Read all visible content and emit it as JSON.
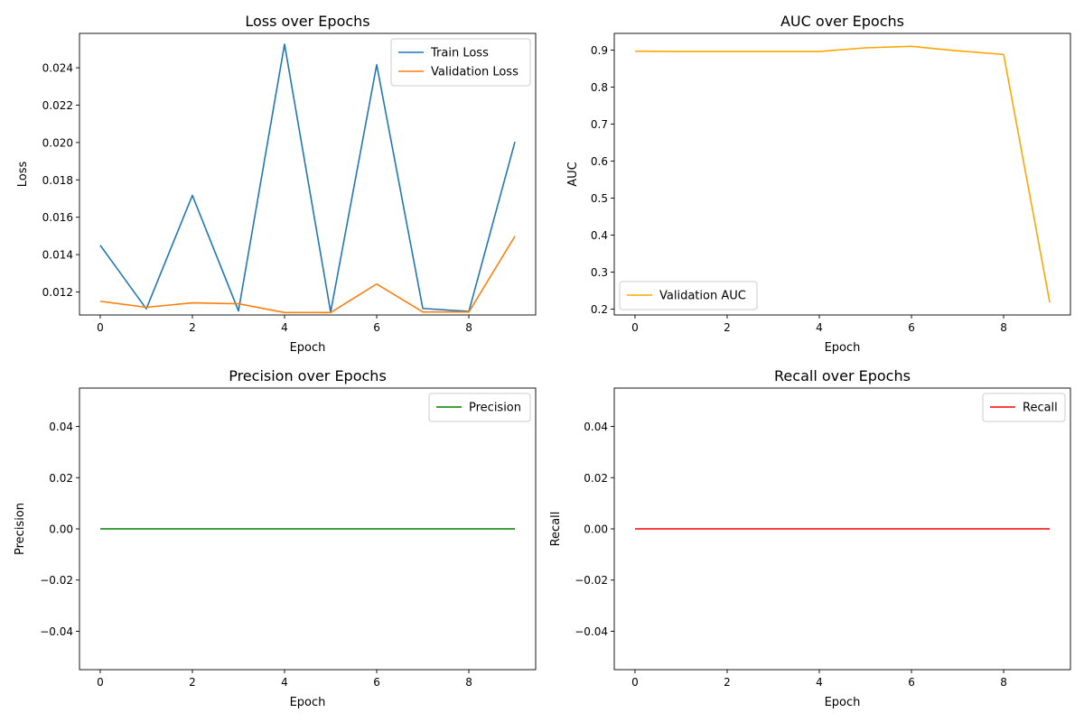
{
  "chart_data": [
    {
      "type": "line",
      "title": "Loss over Epochs",
      "xlabel": "Epoch",
      "ylabel": "Loss",
      "xlim": [
        -0.45,
        9.45
      ],
      "ylim": [
        0.01077,
        0.02584
      ],
      "xticks": [
        0,
        2,
        4,
        6,
        8
      ],
      "xtick_labels": [
        "0",
        "2",
        "4",
        "6",
        "8"
      ],
      "yticks": [
        0.012,
        0.014,
        0.016,
        0.018,
        0.02,
        0.022,
        0.024
      ],
      "ytick_labels": [
        "0.012",
        "0.014",
        "0.016",
        "0.018",
        "0.020",
        "0.022",
        "0.024"
      ],
      "legend_position": "upper-right",
      "series": [
        {
          "name": "Train Loss",
          "color": "#1f77b4",
          "x": [
            0,
            1,
            2,
            3,
            4,
            5,
            6,
            7,
            8,
            9
          ],
          "y": [
            0.0145,
            0.0111,
            0.01717,
            0.01099,
            0.02526,
            0.01092,
            0.02416,
            0.01112,
            0.01096,
            0.02004
          ]
        },
        {
          "name": "Validation Loss",
          "color": "#ff7f0e",
          "x": [
            0,
            1,
            2,
            3,
            4,
            5,
            6,
            7,
            8,
            9
          ],
          "y": [
            0.0115,
            0.01118,
            0.01142,
            0.01137,
            0.0109,
            0.0109,
            0.01243,
            0.01093,
            0.01093,
            0.01499
          ]
        }
      ]
    },
    {
      "type": "line",
      "title": "AUC over Epochs",
      "xlabel": "Epoch",
      "ylabel": "AUC",
      "xlim": [
        -0.45,
        9.45
      ],
      "ylim": [
        0.184,
        0.945
      ],
      "xticks": [
        0,
        2,
        4,
        6,
        8
      ],
      "xtick_labels": [
        "0",
        "2",
        "4",
        "6",
        "8"
      ],
      "yticks": [
        0.2,
        0.3,
        0.4,
        0.5,
        0.6,
        0.7,
        0.8,
        0.9
      ],
      "ytick_labels": [
        "0.2",
        "0.3",
        "0.4",
        "0.5",
        "0.6",
        "0.7",
        "0.8",
        "0.9"
      ],
      "legend_position": "lower-left",
      "series": [
        {
          "name": "Validation AUC",
          "color": "#ffa500",
          "x": [
            0,
            1,
            2,
            3,
            4,
            5,
            6,
            7,
            8,
            9
          ],
          "y": [
            0.897,
            0.896,
            0.896,
            0.896,
            0.896,
            0.906,
            0.91,
            0.898,
            0.888,
            0.218
          ]
        }
      ]
    },
    {
      "type": "line",
      "title": "Precision over Epochs",
      "xlabel": "Epoch",
      "ylabel": "Precision",
      "xlim": [
        -0.45,
        9.45
      ],
      "ylim": [
        -0.055,
        0.055
      ],
      "xticks": [
        0,
        2,
        4,
        6,
        8
      ],
      "xtick_labels": [
        "0",
        "2",
        "4",
        "6",
        "8"
      ],
      "yticks": [
        -0.04,
        -0.02,
        0.0,
        0.02,
        0.04
      ],
      "ytick_labels": [
        "−0.04",
        "−0.02",
        "0.00",
        "0.02",
        "0.04"
      ],
      "legend_position": "upper-right",
      "series": [
        {
          "name": "Precision",
          "color": "#008000",
          "x": [
            0,
            1,
            2,
            3,
            4,
            5,
            6,
            7,
            8,
            9
          ],
          "y": [
            0,
            0,
            0,
            0,
            0,
            0,
            0,
            0,
            0,
            0
          ]
        }
      ]
    },
    {
      "type": "line",
      "title": "Recall over Epochs",
      "xlabel": "Epoch",
      "ylabel": "Recall",
      "xlim": [
        -0.45,
        9.45
      ],
      "ylim": [
        -0.055,
        0.055
      ],
      "xticks": [
        0,
        2,
        4,
        6,
        8
      ],
      "xtick_labels": [
        "0",
        "2",
        "4",
        "6",
        "8"
      ],
      "yticks": [
        -0.04,
        -0.02,
        0.0,
        0.02,
        0.04
      ],
      "ytick_labels": [
        "−0.04",
        "−0.02",
        "0.00",
        "0.02",
        "0.04"
      ],
      "legend_position": "upper-right",
      "series": [
        {
          "name": "Recall",
          "color": "#ff0000",
          "x": [
            0,
            1,
            2,
            3,
            4,
            5,
            6,
            7,
            8,
            9
          ],
          "y": [
            0,
            0,
            0,
            0,
            0,
            0,
            0,
            0,
            0,
            0
          ]
        }
      ]
    }
  ]
}
